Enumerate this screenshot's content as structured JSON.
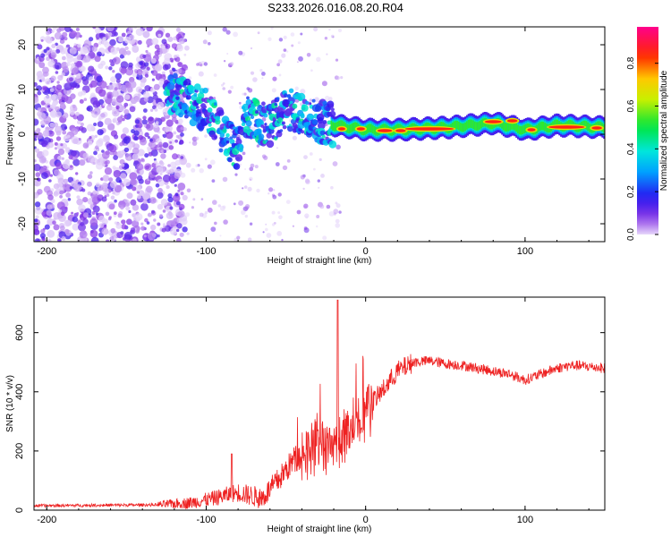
{
  "title": "S233.2026.016.08.20.R04",
  "chart_data": [
    {
      "type": "heatmap",
      "name": "spectrogram",
      "xlabel": "Height of straight line (km)",
      "ylabel": "Frequency (Hz)",
      "xlim": [
        -208,
        150
      ],
      "ylim": [
        -24,
        24
      ],
      "xticks": [
        -200,
        -100,
        0,
        100
      ],
      "yticks": [
        -20,
        -10,
        0,
        10,
        20
      ],
      "colorbar": {
        "label": "Normalized spectral amplitude",
        "range": [
          0,
          0.97
        ],
        "ticks": [
          "0.0",
          "0.2",
          "0.4",
          "0.6",
          "0.8"
        ]
      },
      "ridge": {
        "x": [
          -125,
          -115,
          -105,
          -98,
          -92,
          -85,
          -80,
          -75,
          -68,
          -60,
          -50,
          -40,
          -30,
          -20,
          -10,
          0,
          20,
          50,
          80,
          100,
          120,
          150
        ],
        "frequency": [
          10,
          8,
          6,
          5,
          1,
          -2,
          -3,
          4,
          3,
          2,
          6,
          4,
          3,
          2,
          1.5,
          1,
          1,
          1.5,
          2.5,
          1,
          2,
          1.5
        ]
      }
    },
    {
      "type": "line",
      "name": "snr",
      "xlabel": "Height of straight line (km)",
      "ylabel": "SNR (10 * v/v)",
      "xlim": [
        -208,
        150
      ],
      "ylim": [
        0,
        720
      ],
      "xticks": [
        -200,
        -100,
        0,
        100
      ],
      "yticks": [
        0,
        200,
        400,
        600
      ],
      "color": "#ee2222",
      "envelope": {
        "x": [
          -208,
          -130,
          -110,
          -95,
          -80,
          -65,
          -55,
          -45,
          -35,
          -25,
          -18,
          -10,
          0,
          10,
          20,
          30,
          40,
          50,
          60,
          70,
          80,
          90,
          100,
          110,
          120,
          130,
          140,
          150
        ],
        "snr": [
          15,
          18,
          25,
          40,
          60,
          40,
          100,
          170,
          200,
          200,
          220,
          280,
          340,
          400,
          470,
          500,
          505,
          495,
          490,
          480,
          470,
          460,
          440,
          460,
          480,
          490,
          485,
          480
        ]
      }
    }
  ]
}
